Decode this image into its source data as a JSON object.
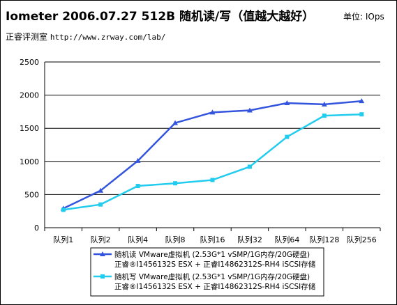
{
  "header": {
    "title": "Iometer 2006.07.27 512B 随机读/写（值越大越好）",
    "unit": "单位: IOps",
    "source_name": "正睿评测室",
    "source_url": "http://www.zrway.com/lab/"
  },
  "chart_data": {
    "type": "line",
    "categories": [
      "队列1",
      "队列2",
      "队列4",
      "队列8",
      "队列16",
      "队列32",
      "队列64",
      "队列128",
      "队列256"
    ],
    "ylim": [
      0,
      2500
    ],
    "yticks": [
      0,
      500,
      1000,
      1500,
      2000,
      2500
    ],
    "grid": true,
    "legend_position": "bottom-right",
    "series": [
      {
        "name_line1": "随机读 VMware虚拟机 (2.53G*1 vSMP/1G内存/20G硬盘)",
        "name_line2": "正睿®I1456132S ESX + 正睿I14862312S-RH4 iSCSI存储",
        "color": "#3355dd",
        "marker": "triangle",
        "values": [
          290,
          560,
          1010,
          1580,
          1740,
          1770,
          1880,
          1860,
          1910
        ]
      },
      {
        "name_line1": "随机写 VMware虚拟机 (2.53G*1 vSMP/1G内存/20G硬盘)",
        "name_line2": "正睿®I1456132S ESX + 正睿I14862312S-RH4 iSCSI存储",
        "color": "#22ccee",
        "marker": "square",
        "values": [
          270,
          350,
          630,
          670,
          720,
          920,
          1370,
          1690,
          1710
        ]
      }
    ]
  }
}
